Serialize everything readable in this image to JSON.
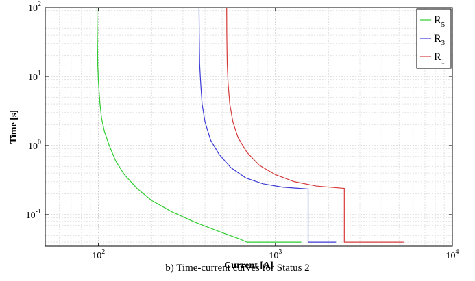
{
  "caption": "b) Time-current curves for Status 2",
  "chart_data": {
    "type": "line",
    "xscale": "log",
    "yscale": "log",
    "xlim": [
      50,
      10000
    ],
    "ylim": [
      0.035,
      100
    ],
    "grid": true,
    "xlabel": "Current [A]",
    "ylabel": "Time [s]",
    "legend_position": "top-right",
    "xticks": [
      {
        "value": 100,
        "base": "10",
        "exp": "2"
      },
      {
        "value": 1000,
        "base": "10",
        "exp": "3"
      },
      {
        "value": 10000,
        "base": "10",
        "exp": "4"
      }
    ],
    "yticks": [
      {
        "value": 0.1,
        "base": "10",
        "exp": "-1"
      },
      {
        "value": 1,
        "base": "10",
        "exp": "0"
      },
      {
        "value": 10,
        "base": "10",
        "exp": "1"
      },
      {
        "value": 100,
        "base": "10",
        "exp": "2"
      }
    ],
    "series": [
      {
        "name": "R5",
        "label_main": "R",
        "label_sub": "5",
        "color": "#2ecc2e",
        "points": [
          [
            98,
            100
          ],
          [
            98.5,
            40
          ],
          [
            99,
            15
          ],
          [
            100,
            8
          ],
          [
            102,
            4
          ],
          [
            104,
            2.5
          ],
          [
            108,
            1.6
          ],
          [
            115,
            1.0
          ],
          [
            125,
            0.6
          ],
          [
            140,
            0.38
          ],
          [
            165,
            0.24
          ],
          [
            200,
            0.16
          ],
          [
            260,
            0.11
          ],
          [
            350,
            0.078
          ],
          [
            480,
            0.057
          ],
          [
            620,
            0.045
          ],
          [
            690,
            0.04
          ],
          [
            1400,
            0.04
          ]
        ]
      },
      {
        "name": "R3",
        "label_main": "R",
        "label_sub": "3",
        "color": "#3b3bd6",
        "points": [
          [
            370,
            100
          ],
          [
            371,
            40
          ],
          [
            373,
            15
          ],
          [
            378,
            8
          ],
          [
            385,
            4
          ],
          [
            400,
            2.2
          ],
          [
            430,
            1.2
          ],
          [
            480,
            0.75
          ],
          [
            560,
            0.48
          ],
          [
            680,
            0.34
          ],
          [
            850,
            0.28
          ],
          [
            1100,
            0.25
          ],
          [
            1530,
            0.235
          ],
          [
            1530,
            0.04
          ],
          [
            2200,
            0.04
          ]
        ]
      },
      {
        "name": "R1",
        "label_main": "R",
        "label_sub": "1",
        "color": "#d63b3b",
        "points": [
          [
            530,
            100
          ],
          [
            531,
            40
          ],
          [
            534,
            15
          ],
          [
            540,
            8
          ],
          [
            552,
            4
          ],
          [
            575,
            2.2
          ],
          [
            615,
            1.3
          ],
          [
            690,
            0.8
          ],
          [
            810,
            0.52
          ],
          [
            1000,
            0.38
          ],
          [
            1280,
            0.3
          ],
          [
            1700,
            0.26
          ],
          [
            2450,
            0.24
          ],
          [
            2450,
            0.04
          ],
          [
            5300,
            0.04
          ]
        ]
      }
    ]
  }
}
